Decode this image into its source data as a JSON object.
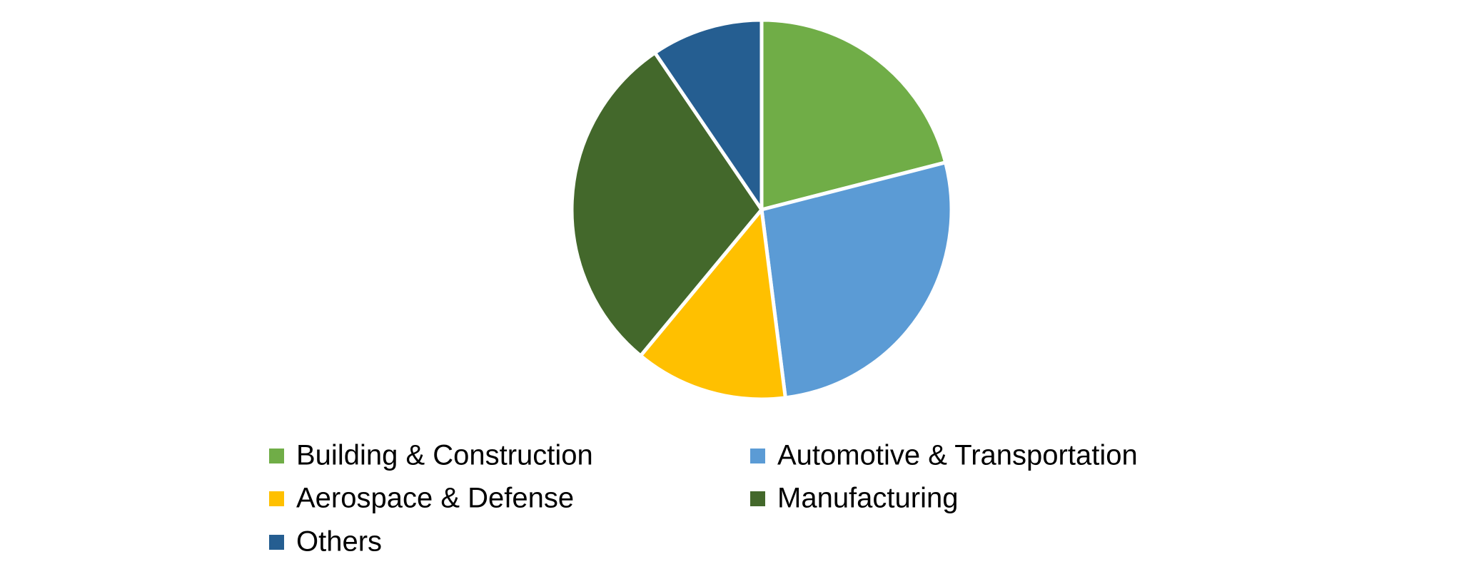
{
  "chart_data": {
    "type": "pie",
    "categories": [
      "Building & Construction",
      "Automotive & Transportation",
      "Aerospace & Defense",
      "Manufacturing",
      "Others"
    ],
    "values": [
      21,
      27,
      13,
      29.5,
      9.5
    ],
    "colors": [
      "#70ad47",
      "#5b9bd5",
      "#ffc000",
      "#43682b",
      "#255e91"
    ],
    "legend": "bottom"
  }
}
